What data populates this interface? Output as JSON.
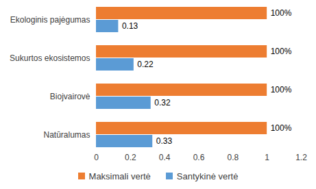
{
  "chart_data": {
    "type": "bar",
    "orientation": "horizontal",
    "categories": [
      "Ekologinis pajėgumas",
      "Sukurtos ekosistemos",
      "Biojvairovė",
      "Natūralumas"
    ],
    "series": [
      {
        "name": "Maksimali vertė",
        "color": "#ED7D31",
        "values": [
          1,
          1,
          1,
          1
        ],
        "value_labels": [
          "100%",
          "100%",
          "100%",
          "100%"
        ]
      },
      {
        "name": "Santykinė vertė",
        "color": "#5B9BD5",
        "values": [
          0.13,
          0.22,
          0.32,
          0.33
        ]
      }
    ],
    "xlim": [
      0,
      1.2
    ],
    "xticks": [
      0,
      0.2,
      0.4,
      0.6,
      0.8,
      1,
      1.2
    ],
    "grid": false,
    "data_labels": true,
    "legend": "bottom"
  }
}
